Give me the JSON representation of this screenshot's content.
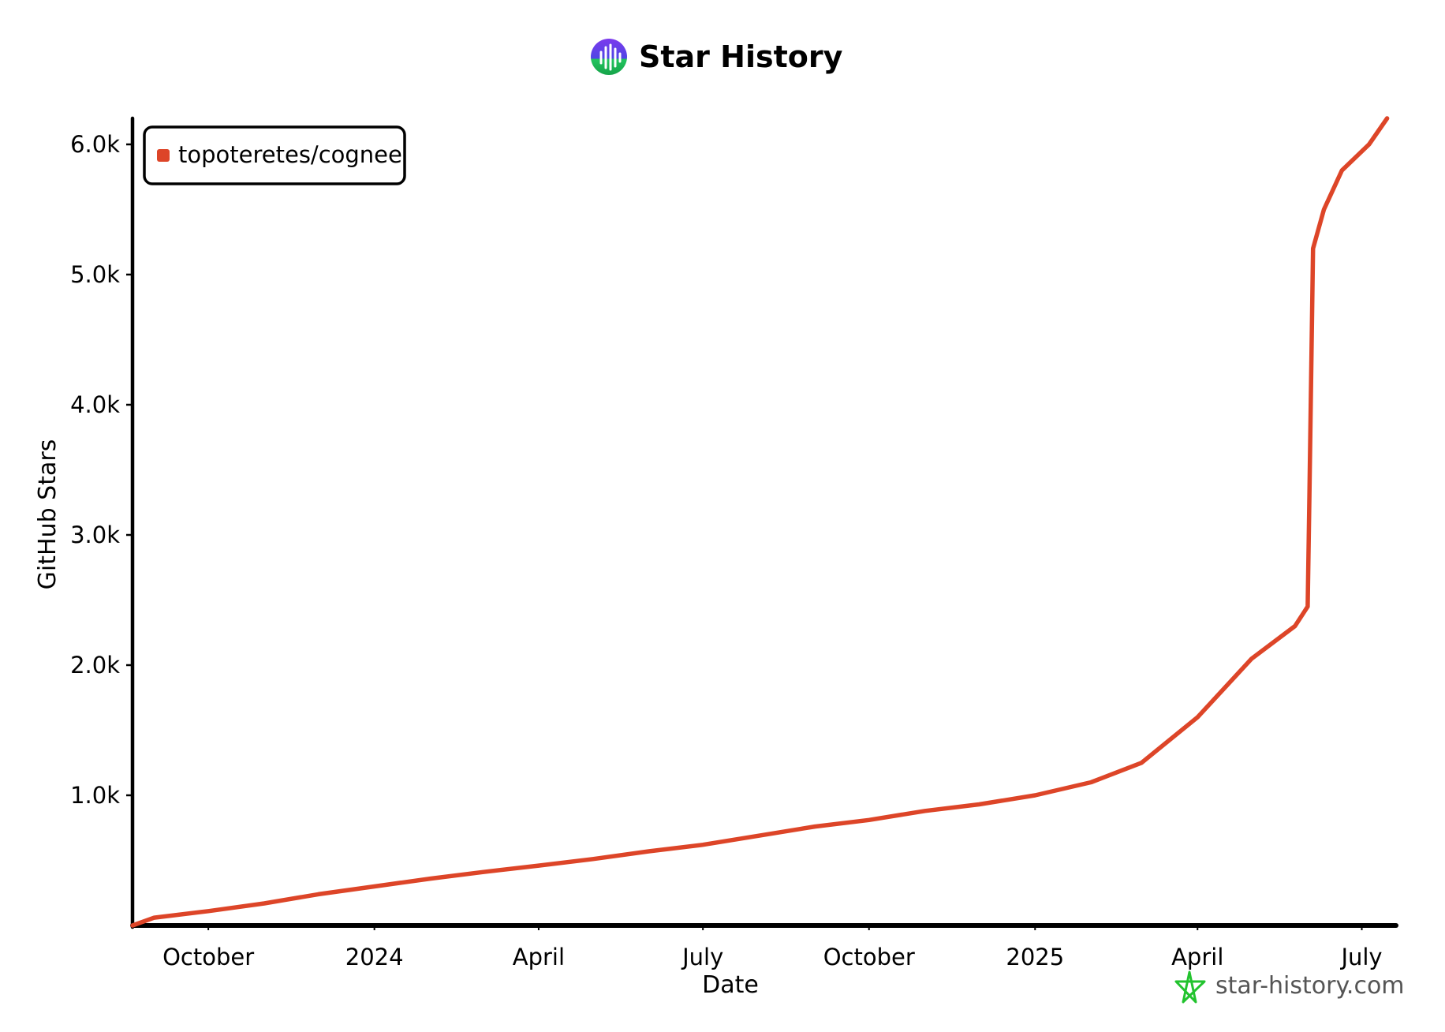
{
  "header": {
    "title": "Star History"
  },
  "watermark": {
    "text": "star-history.com",
    "icon": "star-icon",
    "color": "#22c32e"
  },
  "chart_data": {
    "type": "line",
    "title": "Star History",
    "xlabel": "Date",
    "ylabel": "GitHub Stars",
    "x_type": "date",
    "xlim": [
      "2023-08-20",
      "2025-07-20"
    ],
    "ylim": [
      0,
      6200
    ],
    "x_ticks": [
      {
        "date": "2023-10-01",
        "label": "October"
      },
      {
        "date": "2024-01-01",
        "label": "2024"
      },
      {
        "date": "2024-04-01",
        "label": "April"
      },
      {
        "date": "2024-07-01",
        "label": "July"
      },
      {
        "date": "2024-10-01",
        "label": "October"
      },
      {
        "date": "2025-01-01",
        "label": "2025"
      },
      {
        "date": "2025-04-01",
        "label": "April"
      },
      {
        "date": "2025-07-01",
        "label": "July"
      }
    ],
    "y_ticks": [
      {
        "value": 1000,
        "label": "1.0k"
      },
      {
        "value": 2000,
        "label": "2.0k"
      },
      {
        "value": 3000,
        "label": "3.0k"
      },
      {
        "value": 4000,
        "label": "4.0k"
      },
      {
        "value": 5000,
        "label": "5.0k"
      },
      {
        "value": 6000,
        "label": "6.0k"
      }
    ],
    "grid": false,
    "legend_position": "top-left",
    "series": [
      {
        "name": "topoteretes/cognee",
        "color": "#dd4528",
        "points": [
          [
            "2023-08-20",
            0
          ],
          [
            "2023-09-01",
            60
          ],
          [
            "2023-10-01",
            110
          ],
          [
            "2023-11-01",
            170
          ],
          [
            "2023-12-01",
            240
          ],
          [
            "2024-01-01",
            300
          ],
          [
            "2024-02-01",
            360
          ],
          [
            "2024-03-01",
            410
          ],
          [
            "2024-04-01",
            460
          ],
          [
            "2024-05-01",
            510
          ],
          [
            "2024-06-01",
            570
          ],
          [
            "2024-07-01",
            620
          ],
          [
            "2024-08-01",
            690
          ],
          [
            "2024-09-01",
            760
          ],
          [
            "2024-10-01",
            810
          ],
          [
            "2024-11-01",
            880
          ],
          [
            "2024-12-01",
            930
          ],
          [
            "2025-01-01",
            1000
          ],
          [
            "2025-02-01",
            1100
          ],
          [
            "2025-03-01",
            1250
          ],
          [
            "2025-04-01",
            1600
          ],
          [
            "2025-05-01",
            2050
          ],
          [
            "2025-05-25",
            2300
          ],
          [
            "2025-06-01",
            2450
          ],
          [
            "2025-06-02",
            3300
          ],
          [
            "2025-06-04",
            5200
          ],
          [
            "2025-06-10",
            5500
          ],
          [
            "2025-06-20",
            5800
          ],
          [
            "2025-07-05",
            6000
          ],
          [
            "2025-07-15",
            6200
          ]
        ]
      }
    ]
  }
}
